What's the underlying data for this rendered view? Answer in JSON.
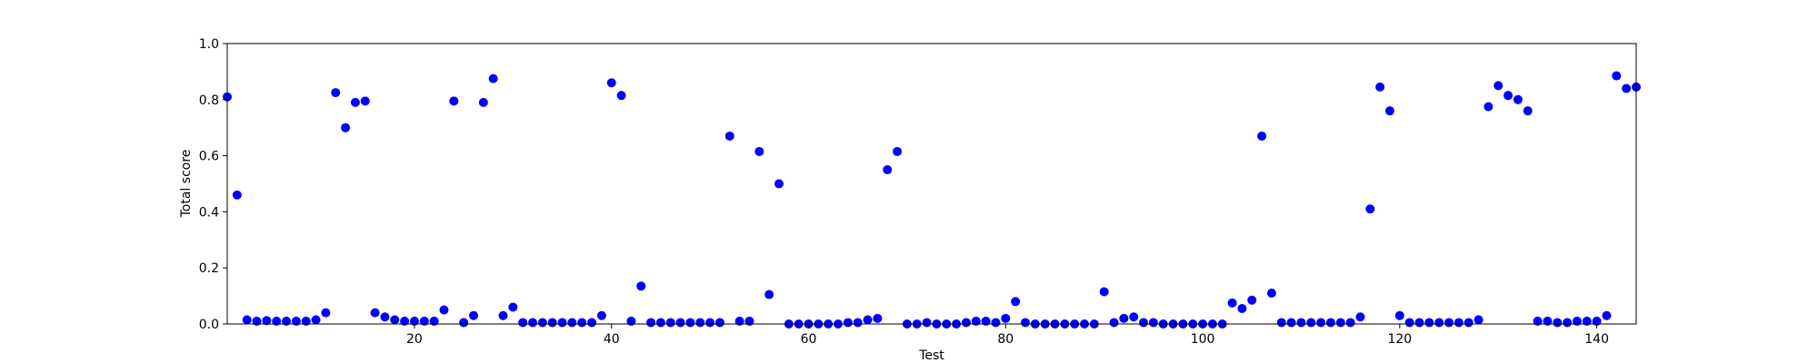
{
  "chart_data": {
    "type": "scatter",
    "xlabel": "Test",
    "ylabel": "Total score",
    "xlim": [
      1,
      144
    ],
    "ylim": [
      0.0,
      1.0
    ],
    "x_ticks": [
      20,
      40,
      60,
      80,
      100,
      120,
      140
    ],
    "y_ticks": [
      0.0,
      0.2,
      0.4,
      0.6,
      0.8,
      1.0
    ],
    "x_tick_labels": [
      "20",
      "40",
      "60",
      "80",
      "100",
      "120",
      "140"
    ],
    "y_tick_labels": [
      "0.0",
      "0.2",
      "0.4",
      "0.6",
      "0.8",
      "1.0"
    ],
    "grid": false,
    "marker_color": "#0000ff",
    "x": [
      1,
      2,
      3,
      4,
      5,
      6,
      7,
      8,
      9,
      10,
      11,
      12,
      13,
      14,
      15,
      16,
      17,
      18,
      19,
      20,
      21,
      22,
      23,
      24,
      25,
      26,
      27,
      28,
      29,
      30,
      31,
      32,
      33,
      34,
      35,
      36,
      37,
      38,
      39,
      40,
      41,
      42,
      43,
      44,
      45,
      46,
      47,
      48,
      49,
      50,
      51,
      52,
      53,
      54,
      55,
      56,
      57,
      58,
      59,
      60,
      61,
      62,
      63,
      64,
      65,
      66,
      67,
      68,
      69,
      70,
      71,
      72,
      73,
      74,
      75,
      76,
      77,
      78,
      79,
      80,
      81,
      82,
      83,
      84,
      85,
      86,
      87,
      88,
      89,
      90,
      91,
      92,
      93,
      94,
      95,
      96,
      97,
      98,
      99,
      100,
      101,
      102,
      103,
      104,
      105,
      106,
      107,
      108,
      109,
      110,
      111,
      112,
      113,
      114,
      115,
      116,
      117,
      118,
      119,
      120,
      121,
      122,
      123,
      124,
      125,
      126,
      127,
      128,
      129,
      130,
      131,
      132,
      133,
      134,
      135,
      136,
      137,
      138,
      139,
      140,
      141,
      142,
      143,
      144
    ],
    "y": [
      0.81,
      0.46,
      0.015,
      0.01,
      0.012,
      0.01,
      0.01,
      0.01,
      0.01,
      0.015,
      0.04,
      0.825,
      0.7,
      0.79,
      0.795,
      0.04,
      0.025,
      0.015,
      0.01,
      0.01,
      0.01,
      0.01,
      0.05,
      0.795,
      0.005,
      0.03,
      0.79,
      0.875,
      0.03,
      0.06,
      0.005,
      0.005,
      0.005,
      0.005,
      0.005,
      0.005,
      0.005,
      0.005,
      0.03,
      0.86,
      0.815,
      0.01,
      0.135,
      0.005,
      0.005,
      0.005,
      0.005,
      0.005,
      0.005,
      0.005,
      0.005,
      0.67,
      0.01,
      0.01,
      0.615,
      0.105,
      0.5,
      0.0,
      0.0,
      0.0,
      0.0,
      0.0,
      0.0,
      0.005,
      0.005,
      0.015,
      0.02,
      0.55,
      0.615,
      0.0,
      0.0,
      0.005,
      0.0,
      0.0,
      0.0,
      0.005,
      0.01,
      0.01,
      0.005,
      0.02,
      0.08,
      0.005,
      0.0,
      0.0,
      0.0,
      0.0,
      0.0,
      0.0,
      0.0,
      0.115,
      0.005,
      0.02,
      0.025,
      0.005,
      0.005,
      0.0,
      0.0,
      0.0,
      0.0,
      0.0,
      0.0,
      0.0,
      0.075,
      0.055,
      0.085,
      0.67,
      0.11,
      0.005,
      0.005,
      0.005,
      0.005,
      0.005,
      0.005,
      0.005,
      0.005,
      0.025,
      0.41,
      0.845,
      0.76,
      0.03,
      0.005,
      0.005,
      0.005,
      0.005,
      0.005,
      0.005,
      0.005,
      0.015,
      0.775,
      0.85,
      0.815,
      0.8,
      0.76,
      0.01,
      0.01,
      0.005,
      0.005,
      0.01,
      0.01,
      0.01,
      0.03,
      0.885,
      0.84,
      0.845
    ]
  }
}
